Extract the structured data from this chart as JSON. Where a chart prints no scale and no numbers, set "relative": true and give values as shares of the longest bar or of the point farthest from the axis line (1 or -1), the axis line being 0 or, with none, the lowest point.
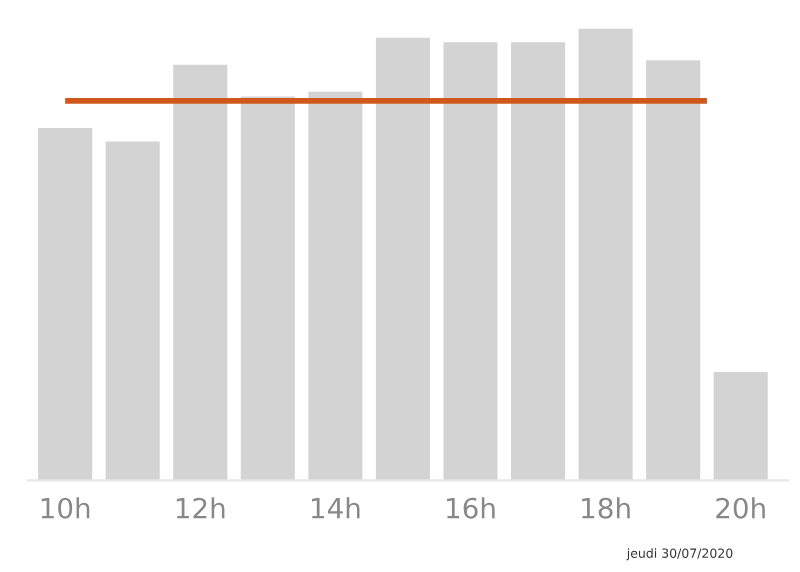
{
  "chart_data": {
    "type": "bar",
    "relative": true,
    "categories": [
      "10h",
      null,
      "12h",
      null,
      "14h",
      null,
      "16h",
      null,
      "18h",
      null,
      "20h"
    ],
    "values": [
      0.78,
      0.75,
      0.92,
      0.85,
      0.86,
      0.98,
      0.97,
      0.97,
      1,
      0.93,
      0.24
    ],
    "color": "#d3d3d4",
    "ref_lines": [
      {
        "axis": "y",
        "value": 0.84,
        "color": "#d0581c"
      }
    ],
    "grid": false,
    "legend": false,
    "annotations": [
      "jeudi 30/07/2020"
    ]
  }
}
